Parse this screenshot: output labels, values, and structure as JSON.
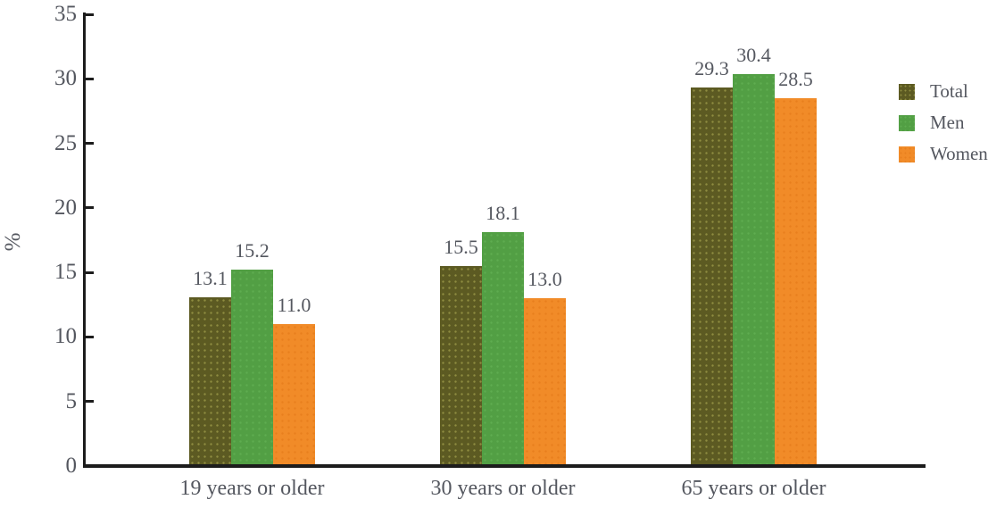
{
  "chart_data": {
    "type": "bar",
    "categories": [
      "19 years or older",
      "30 years or older",
      "65 years or older"
    ],
    "series": [
      {
        "name": "Total",
        "values": [
          13.1,
          15.5,
          29.3
        ],
        "color": "#5c5a22",
        "dot_color": "#8e8c40"
      },
      {
        "name": "Men",
        "values": [
          15.2,
          18.1,
          30.4
        ],
        "color": "#529f44",
        "dot_color": "#5fac50"
      },
      {
        "name": "Women",
        "values": [
          11.0,
          13.0,
          28.5
        ],
        "color": "#f18b28",
        "dot_color": "#e87f1e"
      }
    ],
    "title": "",
    "xlabel": "",
    "ylabel": "%",
    "ylim": [
      0,
      35
    ],
    "yticks": [
      0,
      5,
      10,
      15,
      20,
      25,
      30,
      35
    ],
    "value_labels_shown": true,
    "value_label_decimals": 1,
    "legend_position": "right",
    "grid": false
  },
  "colors": {
    "axis": "#1c1c1c",
    "text": "#54575f",
    "background": "#ffffff"
  }
}
